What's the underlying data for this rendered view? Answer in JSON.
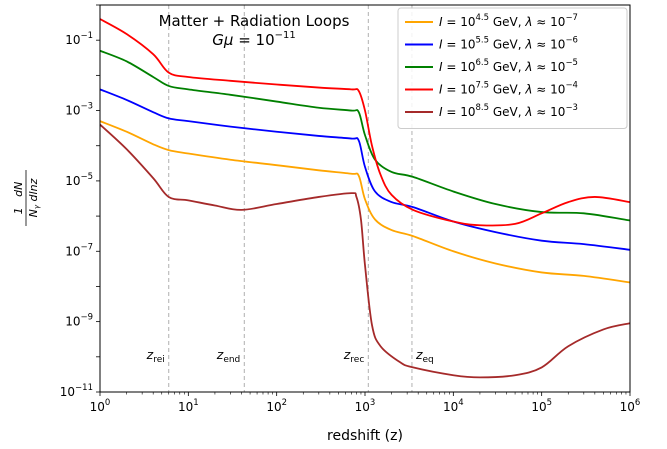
{
  "chart_data": {
    "type": "line",
    "title": "Matter + Radiation Loops",
    "subtitle": "Gμ = 10⁻¹¹",
    "xlabel": "redshift (z)",
    "ylabel": "1/N_γ dN/dlnz",
    "xscale": "log",
    "yscale": "log",
    "xlim": [
      1,
      1000000
    ],
    "ylim": [
      1e-11,
      1
    ],
    "x_ticks": [
      {
        "base": "10",
        "exp": "0"
      },
      {
        "base": "10",
        "exp": "1"
      },
      {
        "base": "10",
        "exp": "2"
      },
      {
        "base": "10",
        "exp": "3"
      },
      {
        "base": "10",
        "exp": "4"
      },
      {
        "base": "10",
        "exp": "5"
      },
      {
        "base": "10",
        "exp": "6"
      }
    ],
    "y_ticks": [
      {
        "base": "10",
        "exp": "−11"
      },
      {
        "base": "10",
        "exp": "−9"
      },
      {
        "base": "10",
        "exp": "−7"
      },
      {
        "base": "10",
        "exp": "−5"
      },
      {
        "base": "10",
        "exp": "−3"
      },
      {
        "base": "10",
        "exp": "−1"
      }
    ],
    "grid": false,
    "legend_position": "top-right",
    "vlines": [
      {
        "label": "z_rei",
        "name": "z",
        "sub": "rei",
        "x": 6
      },
      {
        "label": "z_end",
        "name": "z",
        "sub": "end",
        "x": 43
      },
      {
        "label": "z_rec",
        "name": "z",
        "sub": "rec",
        "x": 1090
      },
      {
        "label": "z_eq",
        "name": "z",
        "sub": "eq",
        "x": 3400
      }
    ],
    "series": [
      {
        "name": "I = 10^4.5 GeV, λ ≈ 10^-7",
        "legend": {
          "i_exp": "4.5",
          "l_exp": "−7"
        },
        "color": "#ffa500",
        "points": [
          [
            1,
            0.0005
          ],
          [
            2,
            0.00025
          ],
          [
            4,
            0.00011
          ],
          [
            6,
            7.5e-05
          ],
          [
            10,
            6e-05
          ],
          [
            30,
            4e-05
          ],
          [
            100,
            2.8e-05
          ],
          [
            300,
            2e-05
          ],
          [
            700,
            1.6e-05
          ],
          [
            850,
            1.4e-05
          ],
          [
            1000,
            3e-06
          ],
          [
            1300,
            8e-07
          ],
          [
            2000,
            4e-07
          ],
          [
            3500,
            2.7e-07
          ],
          [
            10000,
            1e-07
          ],
          [
            30000,
            4.5e-08
          ],
          [
            100000,
            2.5e-08
          ],
          [
            300000,
            2e-08
          ],
          [
            1000000,
            1.3e-08
          ]
        ]
      },
      {
        "name": "I = 10^5.5 GeV, λ ≈ 10^-6",
        "legend": {
          "i_exp": "5.5",
          "l_exp": "−6"
        },
        "color": "#0000ff",
        "points": [
          [
            1,
            0.004
          ],
          [
            2,
            0.002
          ],
          [
            4,
            0.0009
          ],
          [
            6,
            0.0006
          ],
          [
            10,
            0.0005
          ],
          [
            30,
            0.00035
          ],
          [
            100,
            0.00025
          ],
          [
            300,
            0.00019
          ],
          [
            700,
            0.00016
          ],
          [
            850,
            0.00014
          ],
          [
            1000,
            2.5e-05
          ],
          [
            1300,
            5e-06
          ],
          [
            2000,
            2.5e-06
          ],
          [
            3500,
            1.8e-06
          ],
          [
            10000,
            7e-07
          ],
          [
            30000,
            3.5e-07
          ],
          [
            100000,
            2e-07
          ],
          [
            300000,
            1.6e-07
          ],
          [
            1000000,
            1.1e-07
          ]
        ]
      },
      {
        "name": "I = 10^6.5 GeV, λ ≈ 10^-5",
        "legend": {
          "i_exp": "6.5",
          "l_exp": "−5"
        },
        "color": "#008000",
        "points": [
          [
            1,
            0.05
          ],
          [
            2,
            0.025
          ],
          [
            4,
            0.009
          ],
          [
            6,
            0.005
          ],
          [
            10,
            0.004
          ],
          [
            30,
            0.0028
          ],
          [
            100,
            0.0018
          ],
          [
            300,
            0.0012
          ],
          [
            700,
            0.001
          ],
          [
            850,
            0.0009
          ],
          [
            1000,
            0.0002
          ],
          [
            1300,
            4e-05
          ],
          [
            2000,
            1.8e-05
          ],
          [
            3500,
            1.3e-05
          ],
          [
            10000,
            5e-06
          ],
          [
            30000,
            2.2e-06
          ],
          [
            100000,
            1.3e-06
          ],
          [
            300000,
            1.2e-06
          ],
          [
            1000000,
            7.5e-07
          ]
        ]
      },
      {
        "name": "I = 10^7.5 GeV, λ ≈ 10^-4",
        "legend": {
          "i_exp": "7.5",
          "l_exp": "−4"
        },
        "color": "#ff0000",
        "points": [
          [
            1,
            0.4
          ],
          [
            2,
            0.15
          ],
          [
            4,
            0.04
          ],
          [
            6,
            0.012
          ],
          [
            10,
            0.009
          ],
          [
            30,
            0.007
          ],
          [
            100,
            0.0055
          ],
          [
            300,
            0.0045
          ],
          [
            700,
            0.004
          ],
          [
            850,
            0.0036
          ],
          [
            1000,
            0.001
          ],
          [
            1200,
            0.0001
          ],
          [
            1500,
            1.5e-05
          ],
          [
            2000,
            4e-06
          ],
          [
            3500,
            1.5e-06
          ],
          [
            10000,
            7e-07
          ],
          [
            20000,
            5.5e-07
          ],
          [
            50000,
            6e-07
          ],
          [
            100000,
            1.2e-06
          ],
          [
            200000,
            2.5e-06
          ],
          [
            400000,
            3.5e-06
          ],
          [
            1000000,
            2.5e-06
          ]
        ]
      },
      {
        "name": "I = 10^8.5 GeV, λ ≈ 10^-3",
        "legend": {
          "i_exp": "8.5",
          "l_exp": "−3"
        },
        "color": "#a52a2a",
        "points": [
          [
            1,
            0.0004
          ],
          [
            2,
            8e-05
          ],
          [
            4,
            1.2e-05
          ],
          [
            6,
            3.5e-06
          ],
          [
            10,
            2.8e-06
          ],
          [
            20,
            2e-06
          ],
          [
            40,
            1.5e-06
          ],
          [
            100,
            2.2e-06
          ],
          [
            300,
            3.5e-06
          ],
          [
            700,
            4.5e-06
          ],
          [
            800,
            3.5e-06
          ],
          [
            900,
            8e-07
          ],
          [
            1000,
            4e-08
          ],
          [
            1200,
            8e-10
          ],
          [
            1500,
            2e-10
          ],
          [
            2500,
            7e-11
          ],
          [
            3500,
            5e-11
          ],
          [
            10000,
            3e-11
          ],
          [
            20000,
            2.6e-11
          ],
          [
            50000,
            3e-11
          ],
          [
            100000,
            5e-11
          ],
          [
            200000,
            2e-10
          ],
          [
            500000,
            6e-10
          ],
          [
            1000000,
            9e-10
          ]
        ]
      }
    ]
  }
}
